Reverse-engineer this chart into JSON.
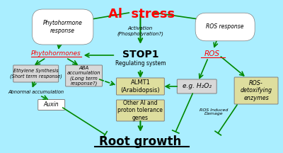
{
  "bg_color": "#aaeeff",
  "title": "Al  stress",
  "title_color": "#ff0000",
  "title_fontsize": 13,
  "root_growth_text": "Root growth",
  "arrow_color": "#008800",
  "box_fill_beige": "#dede9e",
  "box_fill_gray": "#d8d8d8",
  "stop1_line1": "STOP1",
  "stop1_line2": "Regulating system",
  "activation_text": "Activation\n(Phospholyration?)",
  "phytohormone_response_text": "Phytohormone\nresponse",
  "phytohormones_text": "Phytohormones",
  "ethylene_text": "Ethylene Synthesis\n(Short term response)",
  "aba_text": "ABA\naccumulation\n(Long term\nresponse?)",
  "abnormal_text": "Abnormal accumulation",
  "auxin_text": "Auxin",
  "almt1_text": "ALMT1\n(Arabidopsis)",
  "other_genes_text": "Other Al and\nproton tolerance\ngenes",
  "ros_response_text": "ROS response",
  "ros_text": "ROS",
  "h2o2_text": "e.g. H₂O₂",
  "ros_induced_text": "ROS Induced\nDamage",
  "ros_detox_text": "ROS-\ndetoxifying\nenzymes"
}
